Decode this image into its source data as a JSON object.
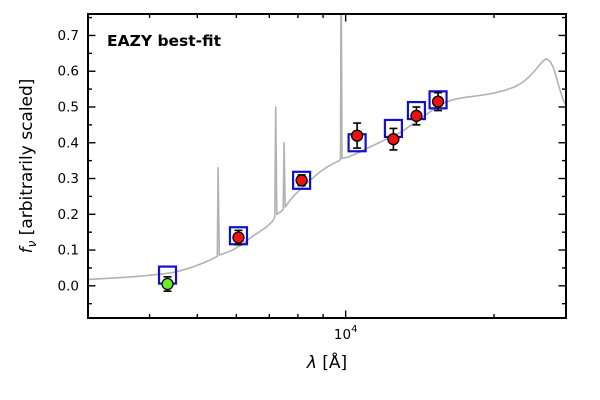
{
  "figure": {
    "annotation": "EAZY best-fit",
    "annotation_color": "#ee0000"
  },
  "chart_data": {
    "type": "scatter",
    "title": "",
    "xlabel": {
      "symbol": "λ",
      "rest": " [Å]"
    },
    "ylabel": {
      "symbol": "f",
      "subscript": "ν",
      "rest": " [arbitrarily scaled]"
    },
    "xscale": "log",
    "xlim": [
      3000,
      28000
    ],
    "ylim": [
      -0.09,
      0.76
    ],
    "grid": false,
    "legend": "none",
    "xticks": {
      "major": [
        {
          "value": 10000,
          "label_base": "10",
          "label_exp": "4"
        }
      ],
      "minor": [
        3000,
        4000,
        5000,
        6000,
        7000,
        8000,
        9000,
        20000
      ]
    },
    "yticks": {
      "major": [
        0.0,
        0.1,
        0.2,
        0.3,
        0.4,
        0.5,
        0.6,
        0.7
      ],
      "minor_step": 0.05
    },
    "series": [
      {
        "name": "model-spectrum",
        "type": "line",
        "color": "#b2b2b2",
        "points": [
          [
            3000,
            0.018
          ],
          [
            3300,
            0.021
          ],
          [
            3600,
            0.024
          ],
          [
            3900,
            0.028
          ],
          [
            4100,
            0.031
          ],
          [
            4300,
            0.034
          ],
          [
            4500,
            0.038
          ],
          [
            4700,
            0.045
          ],
          [
            4900,
            0.053
          ],
          [
            5100,
            0.062
          ],
          [
            5300,
            0.072
          ],
          [
            5450,
            0.08
          ],
          [
            5490,
            0.083
          ],
          [
            5510,
            0.33
          ],
          [
            5540,
            0.086
          ],
          [
            5700,
            0.092
          ],
          [
            5900,
            0.1
          ],
          [
            6100,
            0.112
          ],
          [
            6300,
            0.126
          ],
          [
            6500,
            0.14
          ],
          [
            6700,
            0.152
          ],
          [
            6900,
            0.164
          ],
          [
            7100,
            0.18
          ],
          [
            7180,
            0.192
          ],
          [
            7210,
            0.5
          ],
          [
            7250,
            0.2
          ],
          [
            7400,
            0.208
          ],
          [
            7470,
            0.214
          ],
          [
            7500,
            0.4
          ],
          [
            7540,
            0.22
          ],
          [
            7700,
            0.238
          ],
          [
            7900,
            0.256
          ],
          [
            8100,
            0.27
          ],
          [
            8300,
            0.284
          ],
          [
            8500,
            0.297
          ],
          [
            8700,
            0.309
          ],
          [
            8900,
            0.32
          ],
          [
            9100,
            0.329
          ],
          [
            9300,
            0.337
          ],
          [
            9500,
            0.344
          ],
          [
            9700,
            0.35
          ],
          [
            9760,
            0.353
          ],
          [
            9790,
            0.92
          ],
          [
            9830,
            0.356
          ],
          [
            10100,
            0.36
          ],
          [
            10400,
            0.367
          ],
          [
            10800,
            0.377
          ],
          [
            11200,
            0.388
          ],
          [
            11600,
            0.398
          ],
          [
            12000,
            0.408
          ],
          [
            12500,
            0.419
          ],
          [
            13000,
            0.431
          ],
          [
            13500,
            0.447
          ],
          [
            14000,
            0.461
          ],
          [
            14500,
            0.477
          ],
          [
            15000,
            0.491
          ],
          [
            15500,
            0.504
          ],
          [
            16000,
            0.514
          ],
          [
            16500,
            0.52
          ],
          [
            17000,
            0.524
          ],
          [
            17500,
            0.527
          ],
          [
            18000,
            0.529
          ],
          [
            18700,
            0.532
          ],
          [
            19500,
            0.536
          ],
          [
            20300,
            0.541
          ],
          [
            21200,
            0.548
          ],
          [
            22000,
            0.556
          ],
          [
            22800,
            0.568
          ],
          [
            23600,
            0.585
          ],
          [
            24400,
            0.607
          ],
          [
            25000,
            0.625
          ],
          [
            25500,
            0.635
          ],
          [
            26000,
            0.628
          ],
          [
            26400,
            0.61
          ],
          [
            26800,
            0.58
          ],
          [
            27200,
            0.55
          ],
          [
            27600,
            0.522
          ],
          [
            28000,
            0.505
          ]
        ]
      },
      {
        "name": "model-photometry",
        "type": "squares",
        "color": "#1111cc",
        "x": [
          4350,
          6060,
          8140,
          10550,
          12500,
          13920,
          15400
        ],
        "y": [
          0.03,
          0.14,
          0.295,
          0.4,
          0.44,
          0.49,
          0.52
        ]
      },
      {
        "name": "observed-photometry",
        "type": "errorbar-circles",
        "color": "#ee1111",
        "edge": "#000000",
        "x": [
          6060,
          8140,
          10550,
          12500,
          13920,
          15400
        ],
        "y": [
          0.135,
          0.295,
          0.42,
          0.41,
          0.475,
          0.515
        ],
        "yerr": [
          0.02,
          0.015,
          0.035,
          0.03,
          0.025,
          0.025
        ]
      },
      {
        "name": "observed-photometry-green",
        "type": "errorbar-circles",
        "color": "#66ee22",
        "edge": "#000000",
        "x": [
          4350
        ],
        "y": [
          0.005
        ],
        "yerr": [
          0.02
        ]
      }
    ]
  }
}
